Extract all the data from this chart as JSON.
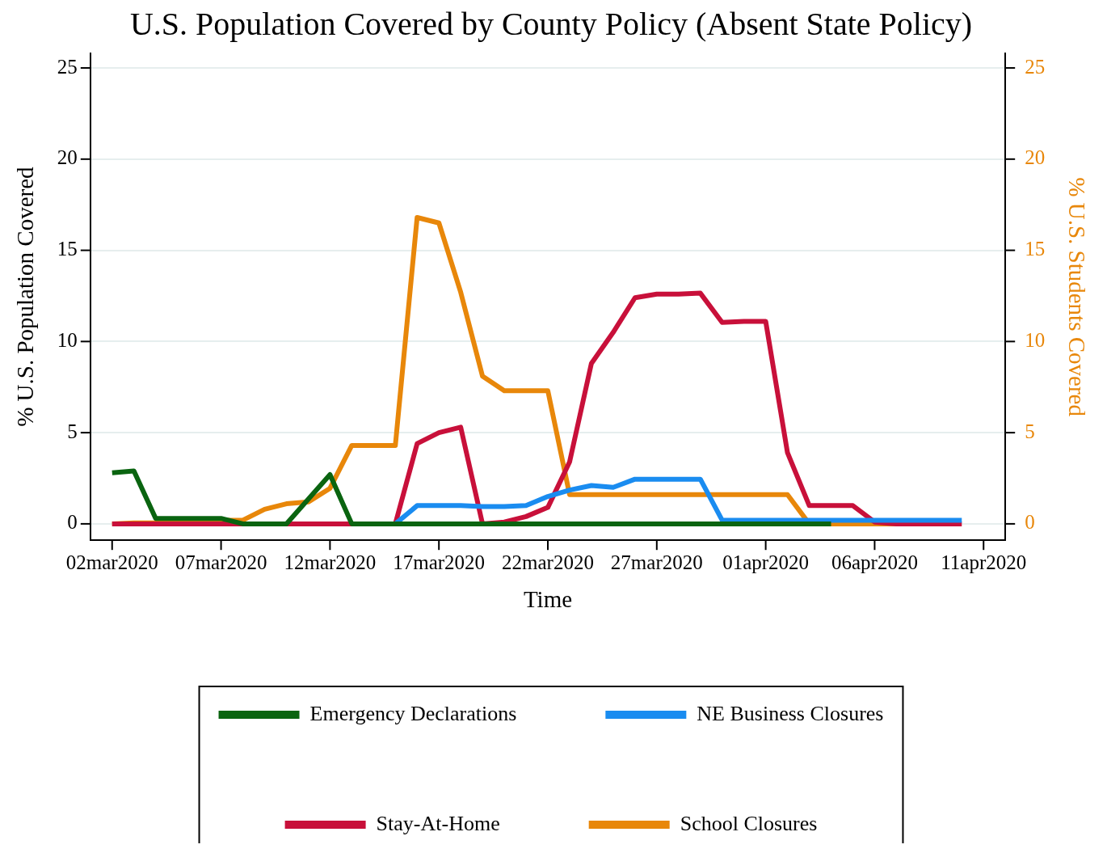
{
  "chart_data": {
    "type": "line",
    "title": "U.S. Population Covered by County Policy (Absent State Policy)",
    "xlabel": "Time",
    "ylabel": "% U.S. Population Covered",
    "y2label": "% U.S. Students Covered",
    "x": [
      "2020-03-02",
      "2020-03-03",
      "2020-03-04",
      "2020-03-05",
      "2020-03-06",
      "2020-03-07",
      "2020-03-08",
      "2020-03-09",
      "2020-03-10",
      "2020-03-11",
      "2020-03-12",
      "2020-03-13",
      "2020-03-14",
      "2020-03-15",
      "2020-03-16",
      "2020-03-17",
      "2020-03-18",
      "2020-03-19",
      "2020-03-20",
      "2020-03-21",
      "2020-03-22",
      "2020-03-23",
      "2020-03-24",
      "2020-03-25",
      "2020-03-26",
      "2020-03-27",
      "2020-03-28",
      "2020-03-29",
      "2020-03-30",
      "2020-03-31",
      "2020-04-01",
      "2020-04-02",
      "2020-04-03",
      "2020-04-04",
      "2020-04-05",
      "2020-04-06",
      "2020-04-07",
      "2020-04-08",
      "2020-04-09",
      "2020-04-10"
    ],
    "series": [
      {
        "name": "Emergency Declarations",
        "color": "#0a6410",
        "values": [
          2.8,
          2.9,
          0.3,
          0.3,
          0.3,
          0.3,
          0,
          0,
          0,
          1.35,
          2.7,
          0,
          0,
          0,
          0,
          0,
          0,
          0,
          0,
          0,
          0,
          0,
          0,
          0,
          0,
          0,
          0,
          0,
          0,
          0,
          0,
          0,
          0,
          0,
          null,
          null,
          null,
          null,
          null,
          null
        ]
      },
      {
        "name": "NE Business Closures",
        "color": "#1a8cf0",
        "values": [
          null,
          null,
          null,
          null,
          null,
          null,
          null,
          null,
          null,
          null,
          null,
          null,
          null,
          0,
          1.0,
          1.0,
          1.0,
          0.95,
          0.95,
          1.0,
          1.5,
          1.85,
          2.1,
          2.0,
          2.45,
          2.45,
          2.45,
          2.45,
          0.2,
          0.2,
          0.2,
          0.2,
          0.2,
          0.2,
          0.2,
          0.2,
          0.2,
          0.2,
          0.2,
          0.2
        ]
      },
      {
        "name": "Stay-At-Home",
        "color": "#c8103a",
        "values": [
          0,
          0,
          0,
          0,
          0,
          0,
          0,
          0,
          0,
          0,
          0,
          0,
          0,
          0,
          4.4,
          5.0,
          5.3,
          0,
          0.1,
          0.4,
          0.9,
          3.4,
          8.8,
          10.5,
          12.4,
          12.6,
          12.6,
          12.65,
          11.05,
          11.1,
          11.1,
          3.9,
          1.0,
          1.0,
          1.0,
          0.1,
          0,
          0,
          0,
          0
        ]
      },
      {
        "name": "School Closures",
        "color": "#e8870a",
        "axis": "y2",
        "values": [
          0,
          0.05,
          0.05,
          0.1,
          0.2,
          0.2,
          0.2,
          0.8,
          1.1,
          1.2,
          1.95,
          4.3,
          4.3,
          4.3,
          16.8,
          16.5,
          12.7,
          8.1,
          7.3,
          7.3,
          7.3,
          1.6,
          1.6,
          1.6,
          1.6,
          1.6,
          1.6,
          1.6,
          1.6,
          1.6,
          1.6,
          1.6,
          0,
          0,
          0,
          0,
          0,
          0,
          null,
          null
        ]
      }
    ],
    "xlim": [
      "2020-03-01",
      "2020-04-12"
    ],
    "xticks": [
      {
        "value": "2020-03-02",
        "label": "02mar2020"
      },
      {
        "value": "2020-03-07",
        "label": "07mar2020"
      },
      {
        "value": "2020-03-12",
        "label": "12mar2020"
      },
      {
        "value": "2020-03-17",
        "label": "17mar2020"
      },
      {
        "value": "2020-03-22",
        "label": "22mar2020"
      },
      {
        "value": "2020-03-27",
        "label": "27mar2020"
      },
      {
        "value": "2020-04-01",
        "label": "01apr2020"
      },
      {
        "value": "2020-04-06",
        "label": "06apr2020"
      },
      {
        "value": "2020-04-11",
        "label": "11apr2020"
      }
    ],
    "ylim": [
      -0.9,
      25.8
    ],
    "yticks": [
      0,
      5,
      10,
      15,
      20,
      25
    ],
    "y2lim": [
      -0.9,
      25.8
    ],
    "y2ticks": [
      0,
      5,
      10,
      15,
      20,
      25
    ],
    "grid": "y",
    "legend": "bottom",
    "marker": "none",
    "line_style": "solid"
  }
}
